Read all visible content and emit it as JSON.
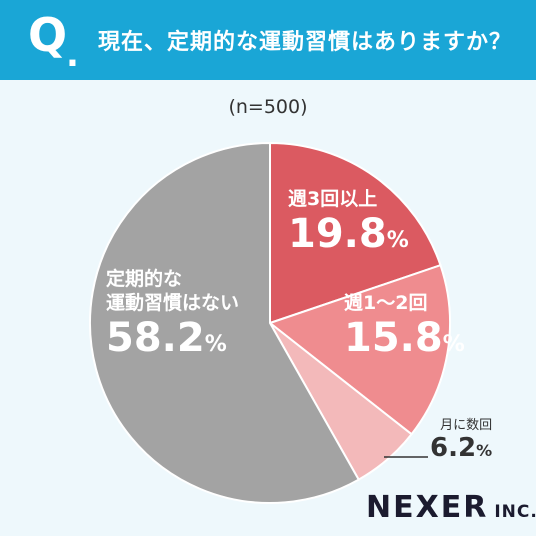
{
  "header": {
    "q_mark": "Q",
    "q_dot": ".",
    "question": "現在、定期的な運動習慣はありますか？"
  },
  "sample_label": "(n=500)",
  "brand": {
    "main": "NEXER",
    "sub": "INC."
  },
  "colors": {
    "header_bg": "#1aa6d6",
    "weekly3": "#db5a61",
    "weekly1to2": "#ef8c8f",
    "monthly": "#f3b9ba",
    "none": "#a3a3a3"
  },
  "chart_data": {
    "type": "pie",
    "title": "現在、定期的な運動習慣はありますか？",
    "subtitle": "(n=500)",
    "slices": [
      {
        "label": "週3回以上",
        "value": 19.8,
        "display": "19.8",
        "unit": "%",
        "color": "#db5a61"
      },
      {
        "label": "週1〜2回",
        "value": 15.8,
        "display": "15.8",
        "unit": "%",
        "color": "#ef8c8f"
      },
      {
        "label": "月に数回",
        "value": 6.2,
        "display": "6.2",
        "unit": "%",
        "color": "#f3b9ba"
      },
      {
        "label": "定期的な運動習慣はない",
        "line1": "定期的な",
        "line2": "運動習慣はない",
        "value": 58.2,
        "display": "58.2",
        "unit": "%",
        "color": "#a3a3a3"
      }
    ]
  }
}
